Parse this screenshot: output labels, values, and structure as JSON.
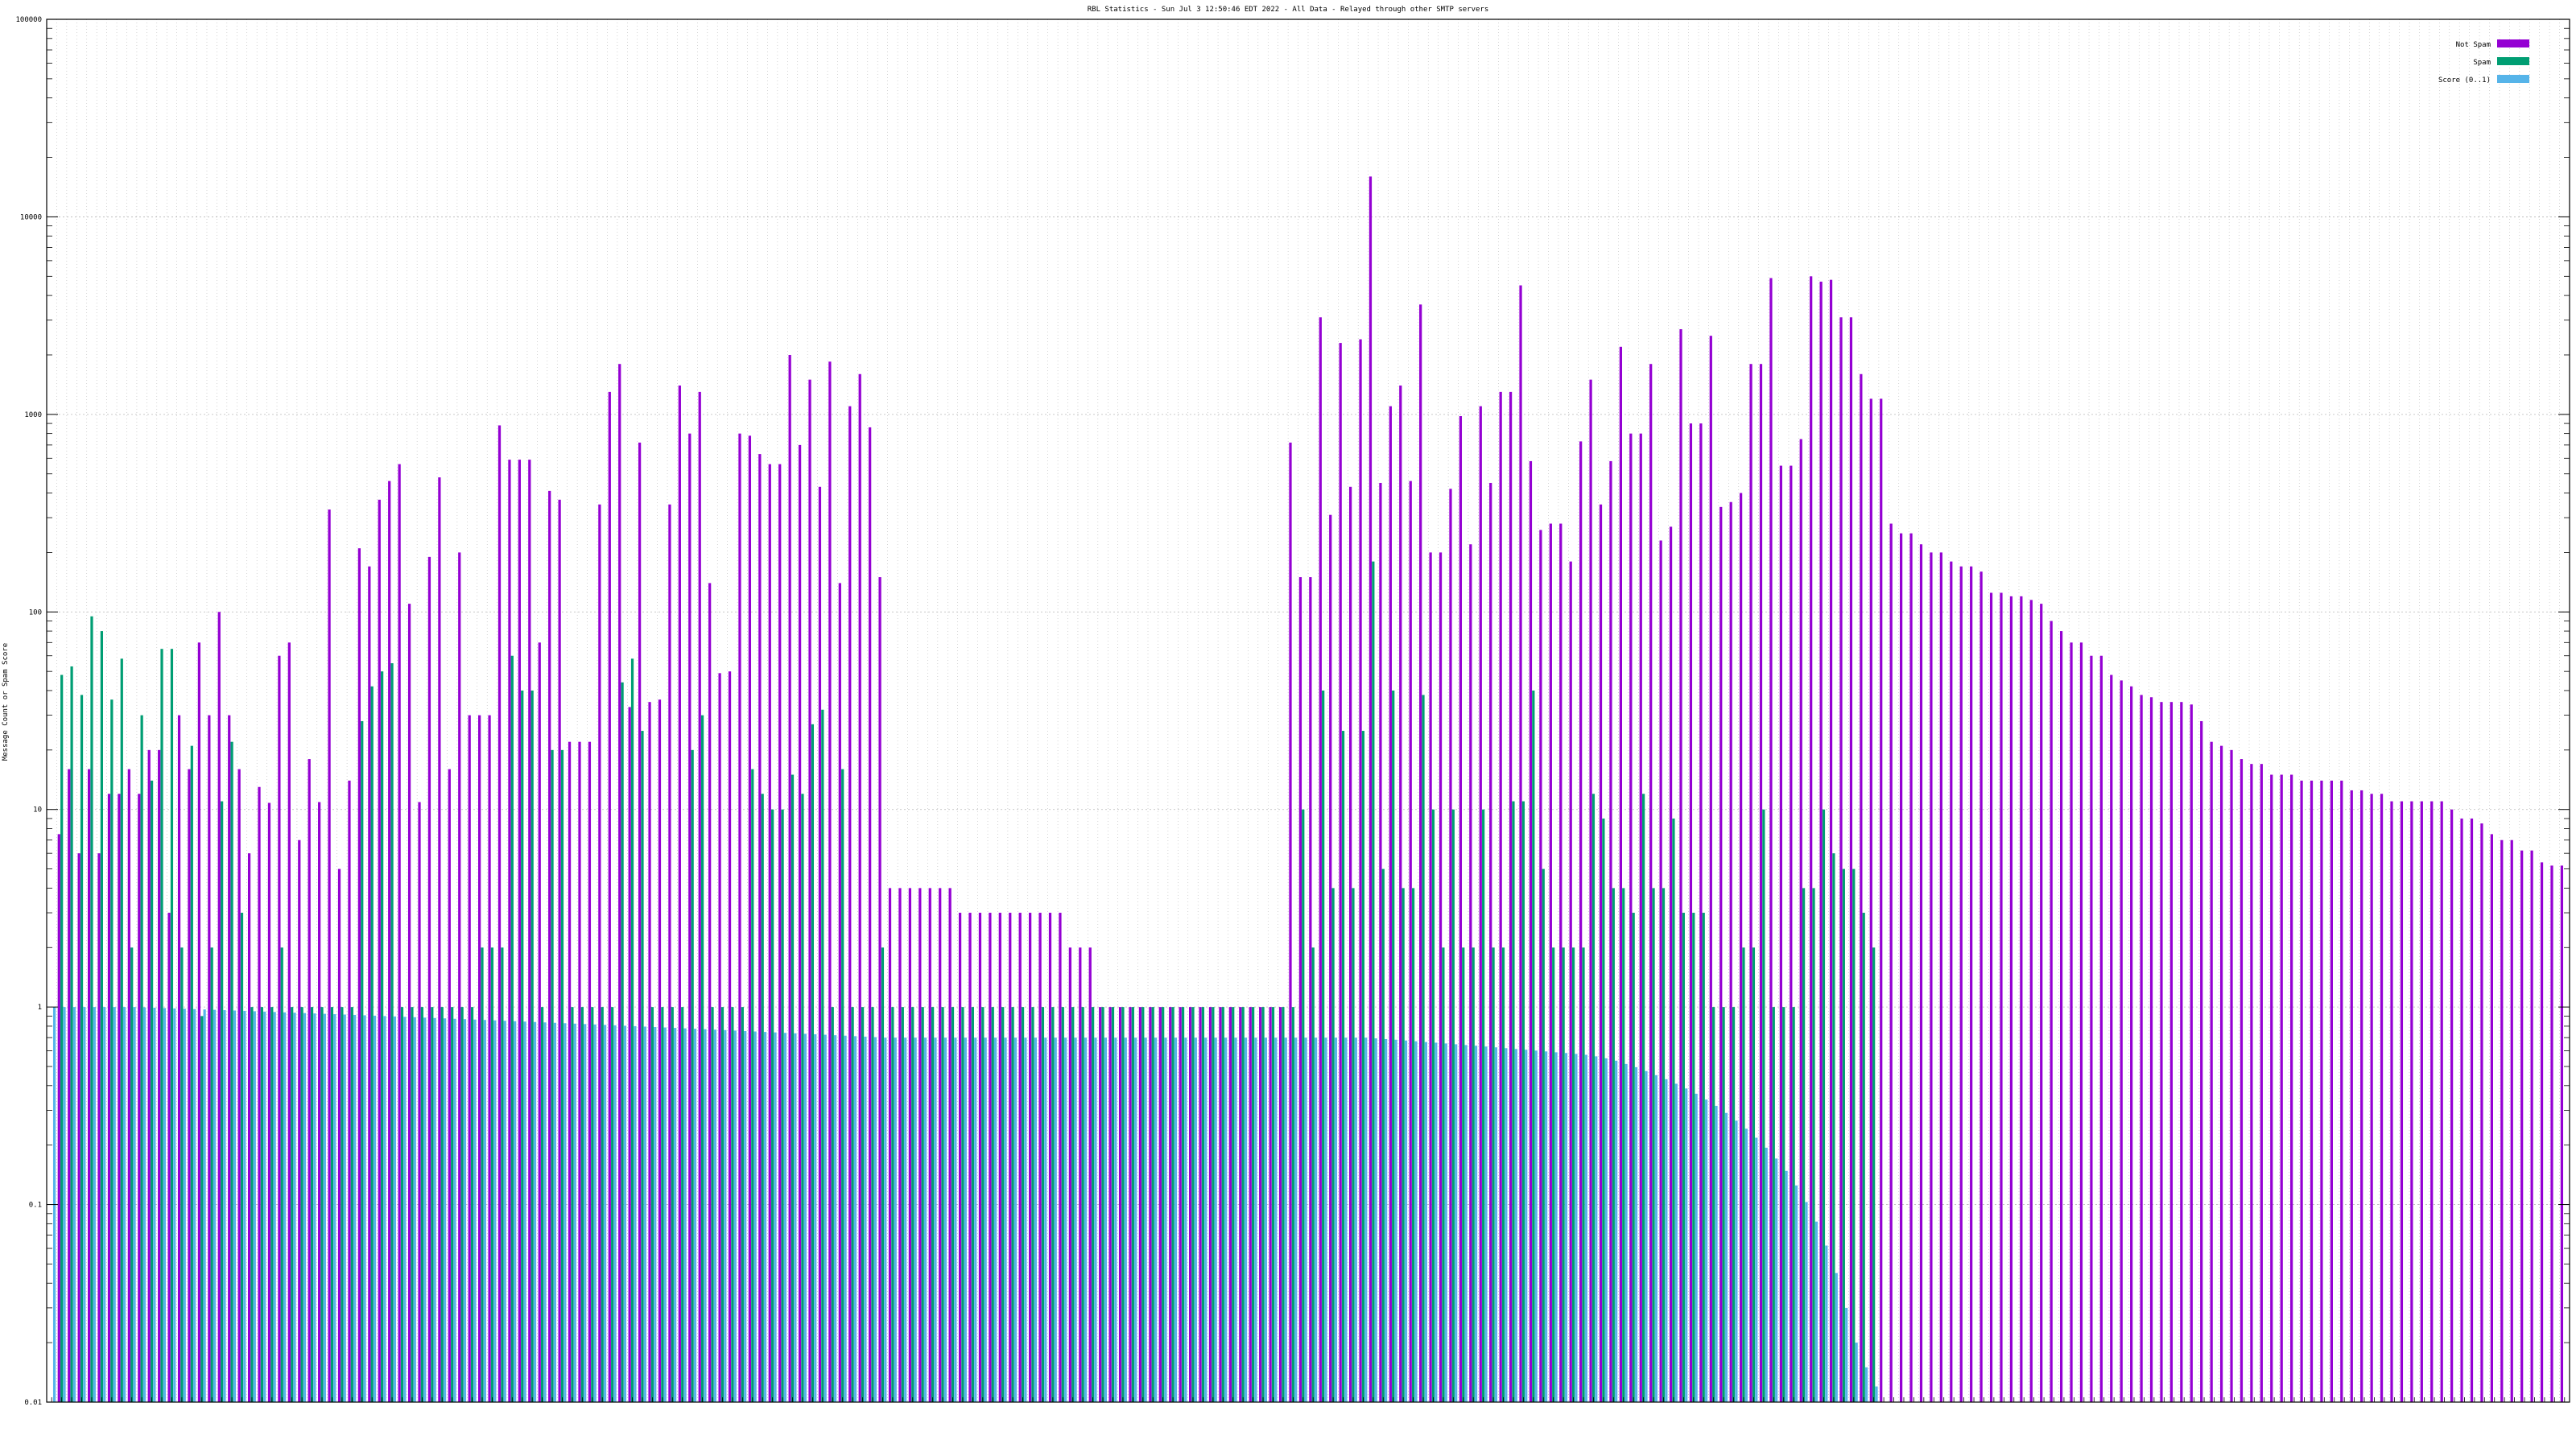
{
  "chart_data": {
    "type": "bar",
    "title": "RBL Statistics - Sun Jul  3 12:50:46 EDT 2022 - All Data - Relayed through other SMTP servers",
    "xlabel": "",
    "ylabel": "Message Count or Spam Score",
    "yscale": "log",
    "ylim": [
      0.01,
      100000
    ],
    "y_ticks": [
      "0.01",
      "0.1",
      "1",
      "10",
      "100",
      "1000",
      "10000",
      "100000"
    ],
    "grid": true,
    "legend_position": "top-right",
    "x_tick_labels": "dense, unreadable at this resolution",
    "colors": {
      "Not Spam": "#9400d3",
      "Spam": "#009e73",
      "Score": "#56b4e9",
      "grid": "#b8b8b8",
      "axis": "#000000"
    },
    "series": [
      {
        "name": "Not Spam",
        "values": [
          0,
          7.5,
          16,
          6,
          16,
          6,
          12,
          12,
          16,
          12,
          20,
          20,
          3,
          30,
          16,
          70,
          30,
          100,
          30,
          16,
          6,
          13,
          10.8,
          60,
          70,
          7,
          18,
          10.9,
          330,
          5,
          14,
          210,
          170,
          370,
          460,
          560,
          110,
          10.9,
          190,
          480,
          16,
          200,
          30,
          30,
          30,
          880,
          590,
          590,
          590,
          70,
          410,
          370,
          22,
          22,
          22,
          350,
          1300,
          1800,
          33,
          720,
          35,
          36,
          350,
          1400,
          800,
          1300,
          140,
          49,
          50,
          800,
          780,
          630,
          560,
          560,
          2000,
          700,
          1500,
          430,
          1850,
          140,
          1100,
          1600,
          860,
          150,
          4,
          4,
          4,
          4,
          4,
          4,
          4,
          3,
          3,
          3,
          3,
          3,
          3,
          3,
          3,
          3,
          3,
          3,
          2,
          2,
          2,
          1,
          1,
          1,
          1,
          1,
          1,
          1,
          1,
          1,
          1,
          1,
          1,
          1,
          1,
          1,
          1,
          1,
          1,
          1,
          720,
          150,
          150,
          3100,
          310,
          2300,
          430,
          2400,
          16000,
          450,
          1100,
          1400,
          460,
          3600,
          200,
          200,
          420,
          980,
          220,
          1100,
          450,
          1300,
          1300,
          4500,
          580,
          260,
          280,
          280,
          180,
          730,
          1500,
          350,
          580,
          2200,
          800,
          800,
          1800,
          230,
          270,
          2700,
          900,
          900,
          2500,
          340,
          360,
          400,
          1800,
          1800,
          4900,
          550,
          550,
          750,
          5000,
          4700,
          4800,
          3100,
          3100,
          1600,
          1200,
          1200,
          280,
          250,
          250,
          220,
          200,
          200,
          180,
          170,
          170,
          160,
          125,
          125,
          120,
          120,
          115,
          110,
          90,
          80,
          70,
          70,
          60,
          60,
          48,
          45,
          42,
          38,
          37,
          35,
          35,
          35,
          34,
          28,
          22,
          21,
          20,
          18,
          17,
          17,
          15,
          15,
          15,
          14,
          14,
          14,
          14,
          14,
          12.5,
          12.5,
          12,
          12,
          11,
          11,
          11,
          11,
          11,
          11,
          10,
          9,
          9,
          8.5,
          7.5,
          7,
          7,
          6.2,
          6.2,
          5.4,
          5.2,
          5.2
        ]
      },
      {
        "name": "Spam",
        "values": [
          0,
          48,
          53,
          38,
          95,
          80,
          36,
          58,
          2,
          30,
          14,
          65,
          65,
          2,
          21,
          0.9,
          2,
          11,
          22,
          3,
          1,
          1,
          1,
          2,
          1,
          1,
          1,
          1,
          1,
          1,
          1,
          28,
          42,
          50,
          55,
          1,
          1,
          1,
          1,
          1,
          1,
          1,
          1,
          2,
          2,
          2,
          60,
          40,
          40,
          1,
          20,
          20,
          1,
          1,
          1,
          1,
          1,
          44,
          58,
          25,
          1,
          1,
          1,
          1,
          20,
          30,
          1,
          1,
          1,
          1,
          16,
          12,
          10,
          10,
          15,
          12,
          27,
          32,
          1,
          16,
          1,
          1,
          1,
          2,
          1,
          1,
          1,
          1,
          1,
          1,
          1,
          1,
          1,
          1,
          1,
          1,
          1,
          1,
          1,
          1,
          1,
          1,
          1,
          1,
          1,
          1,
          1,
          1,
          1,
          1,
          1,
          1,
          1,
          1,
          1,
          1,
          1,
          1,
          1,
          1,
          1,
          1,
          1,
          1,
          1,
          10,
          2,
          40,
          4,
          25,
          4,
          25,
          180,
          5,
          40,
          4,
          4,
          38,
          10,
          2,
          10,
          2,
          2,
          10,
          2,
          2,
          11,
          11,
          40,
          5,
          2,
          2,
          2,
          2,
          12,
          9,
          4,
          4,
          3,
          12,
          4,
          4,
          9,
          3,
          3,
          3,
          1,
          1,
          1,
          2,
          2,
          10,
          1,
          1,
          1,
          4,
          4,
          10,
          6,
          5,
          5,
          3,
          2,
          0,
          0,
          0,
          0,
          0,
          0,
          0,
          0,
          0,
          0,
          0,
          0,
          0,
          0,
          0,
          0,
          0,
          0,
          0,
          0,
          0,
          0,
          0,
          0,
          0,
          0,
          0,
          0,
          0,
          0,
          0,
          0,
          0,
          0,
          0,
          0,
          0,
          0,
          0,
          0,
          0,
          0,
          0,
          0,
          0,
          0,
          0,
          0,
          0,
          0,
          0,
          0,
          0,
          0,
          0,
          0,
          0,
          0,
          0,
          0,
          0,
          0,
          0,
          0,
          0,
          0,
          0,
          0
        ]
      },
      {
        "name": "Score (0..1)",
        "values": [
          1.0,
          1.0,
          1.0,
          1.0,
          1.0,
          1.0,
          1.0,
          1.0,
          1.0,
          0.996,
          0.992,
          0.988,
          0.984,
          0.98,
          0.976,
          0.972,
          0.968,
          0.964,
          0.96,
          0.956,
          0.952,
          0.948,
          0.944,
          0.94,
          0.936,
          0.932,
          0.928,
          0.924,
          0.92,
          0.916,
          0.912,
          0.908,
          0.904,
          0.9,
          0.896,
          0.892,
          0.888,
          0.884,
          0.88,
          0.876,
          0.872,
          0.868,
          0.864,
          0.86,
          0.856,
          0.852,
          0.848,
          0.844,
          0.84,
          0.836,
          0.832,
          0.828,
          0.824,
          0.82,
          0.816,
          0.812,
          0.808,
          0.804,
          0.8,
          0.796,
          0.792,
          0.788,
          0.784,
          0.78,
          0.776,
          0.772,
          0.768,
          0.764,
          0.76,
          0.756,
          0.752,
          0.748,
          0.744,
          0.74,
          0.736,
          0.732,
          0.728,
          0.724,
          0.72,
          0.716,
          0.712,
          0.708,
          0.704,
          0.7,
          0.7,
          0.7,
          0.7,
          0.7,
          0.7,
          0.7,
          0.7,
          0.7,
          0.7,
          0.7,
          0.7,
          0.7,
          0.7,
          0.7,
          0.7,
          0.7,
          0.7,
          0.7,
          0.7,
          0.7,
          0.7,
          0.7,
          0.7,
          0.7,
          0.7,
          0.7,
          0.7,
          0.7,
          0.7,
          0.7,
          0.7,
          0.7,
          0.7,
          0.7,
          0.7,
          0.7,
          0.7,
          0.7,
          0.7,
          0.7,
          0.7,
          0.7,
          0.7,
          0.7,
          0.7,
          0.7,
          0.7,
          0.7,
          0.694,
          0.688,
          0.683,
          0.677,
          0.671,
          0.665,
          0.66,
          0.654,
          0.648,
          0.642,
          0.637,
          0.631,
          0.625,
          0.619,
          0.613,
          0.608,
          0.602,
          0.596,
          0.59,
          0.585,
          0.579,
          0.573,
          0.563,
          0.55,
          0.535,
          0.515,
          0.496,
          0.474,
          0.452,
          0.431,
          0.409,
          0.387,
          0.364,
          0.34,
          0.316,
          0.291,
          0.266,
          0.242,
          0.218,
          0.194,
          0.171,
          0.148,
          0.125,
          0.103,
          0.082,
          0.062,
          0.045,
          0.03,
          0.02,
          0.015,
          0.012,
          0,
          0,
          0,
          0,
          0,
          0,
          0,
          0,
          0,
          0,
          0,
          0,
          0,
          0,
          0,
          0,
          0,
          0,
          0,
          0,
          0,
          0,
          0,
          0,
          0,
          0,
          0,
          0,
          0,
          0,
          0,
          0,
          0,
          0,
          0,
          0,
          0,
          0,
          0,
          0,
          0,
          0,
          0,
          0,
          0,
          0,
          0,
          0,
          0,
          0,
          0,
          0,
          0,
          0,
          0,
          0,
          0,
          0,
          0,
          0,
          0,
          0,
          0,
          0,
          0,
          0,
          0,
          0,
          0
        ]
      }
    ]
  }
}
